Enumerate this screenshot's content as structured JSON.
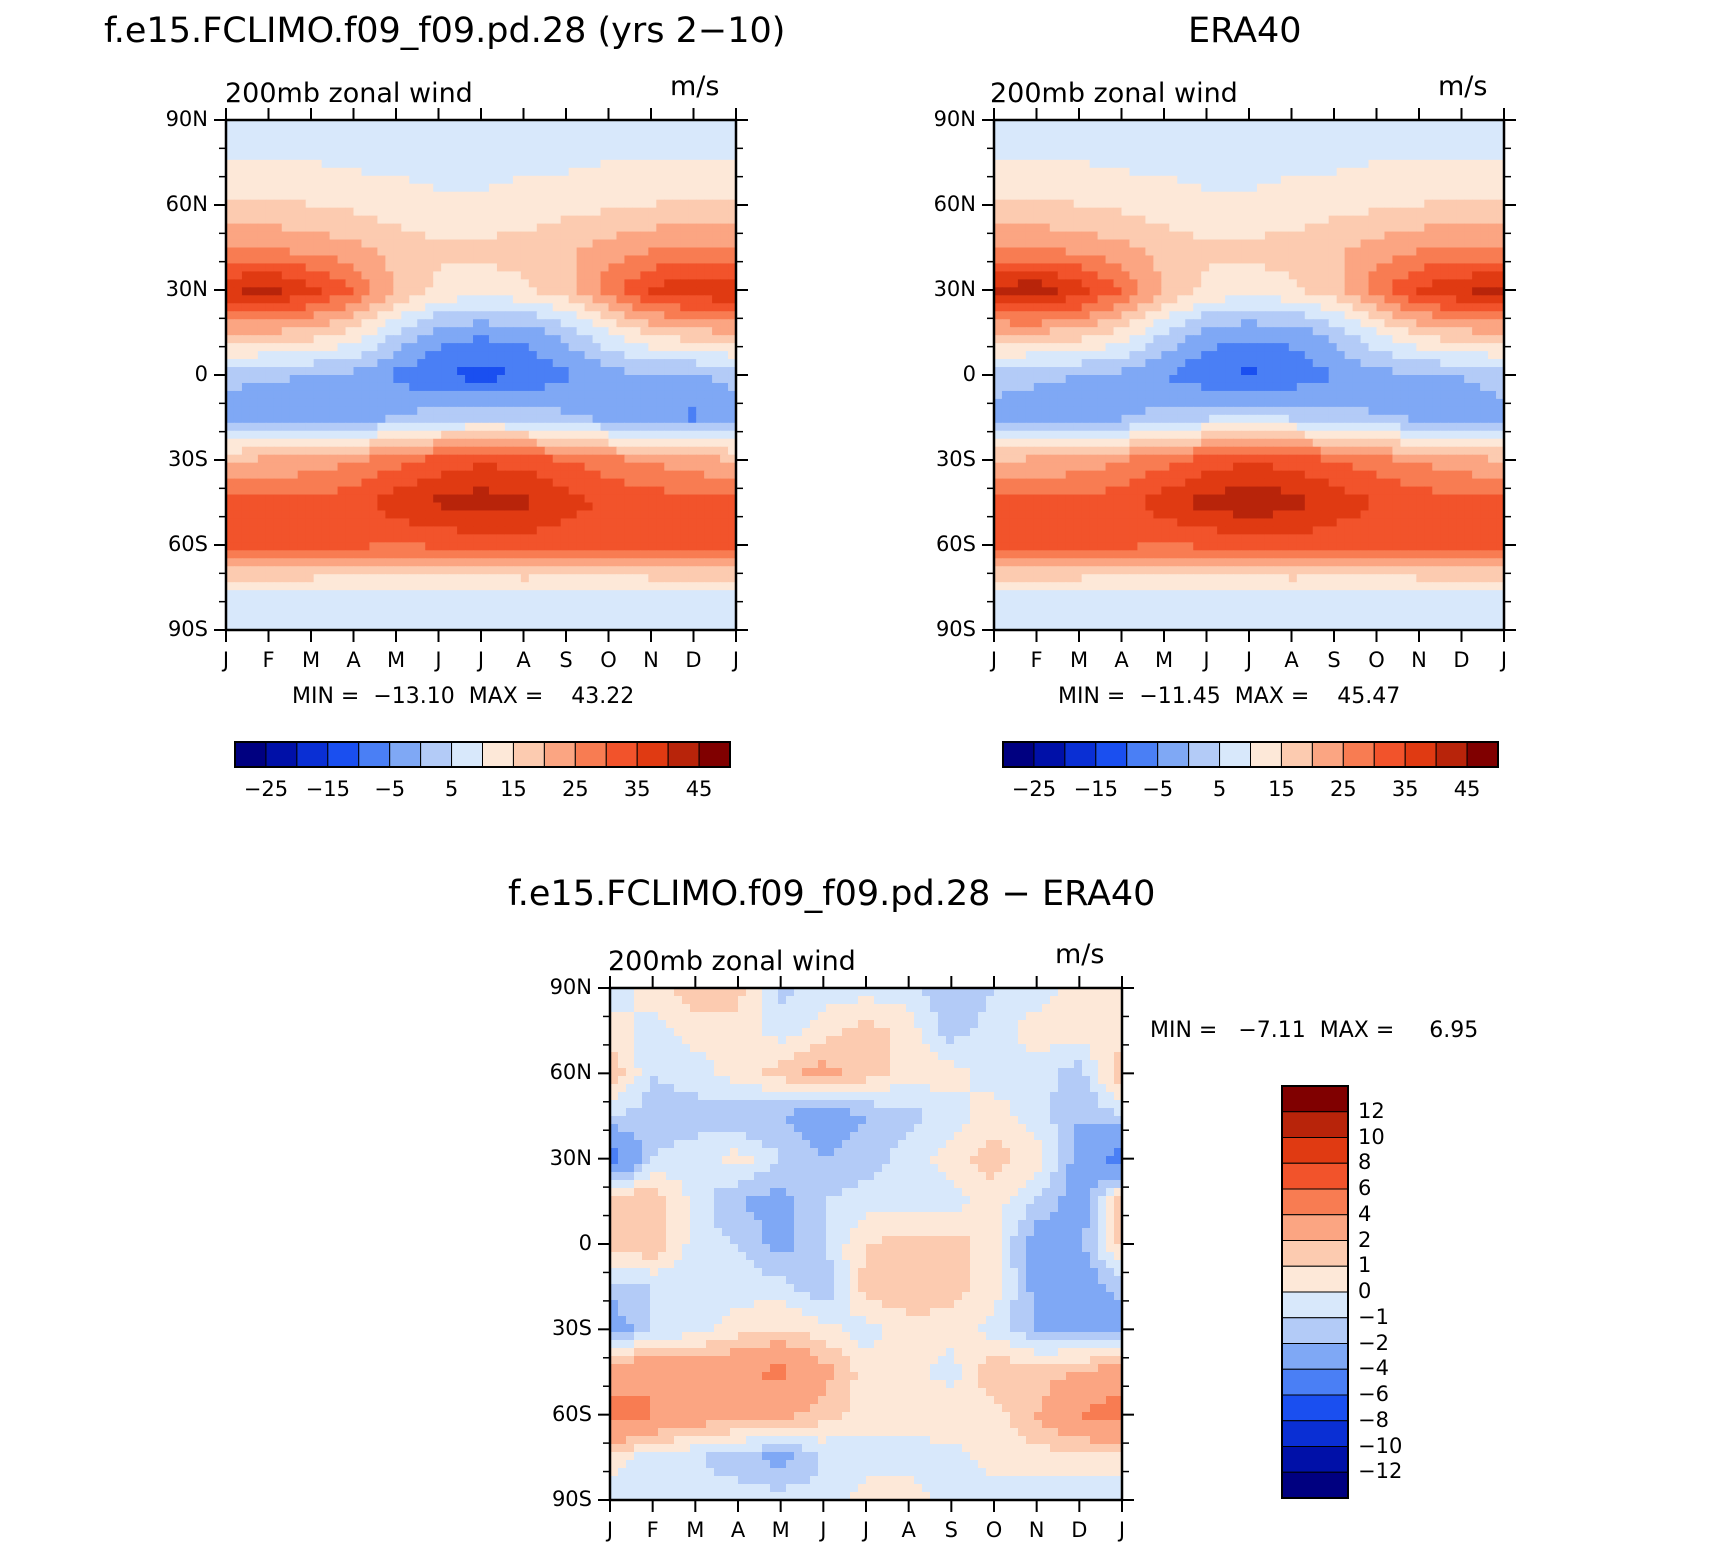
{
  "chart_data": [
    {
      "type": "heatmap",
      "id": "panel-model",
      "title": "f.e15.FCLIMO.f09_f09.pd.28 (yrs 2−10)",
      "subtitle_left": "200mb  zonal  wind",
      "subtitle_right": "m/s",
      "min_max": "MIN =  −13.10  MAX =    43.22",
      "y_ticks": [
        "90N",
        "60N",
        "30N",
        "0",
        "30S",
        "60S",
        "90S"
      ],
      "x_ticks": [
        "J",
        "F",
        "M",
        "A",
        "M",
        "J",
        "J",
        "A",
        "S",
        "O",
        "N",
        "D",
        "J"
      ],
      "ylim": [
        -90,
        90
      ],
      "levels": [
        -30,
        -25,
        -20,
        -15,
        -10,
        -5,
        0,
        5,
        10,
        15,
        20,
        25,
        30,
        35,
        40,
        45
      ],
      "colorbar_labels": [
        "−25",
        "−15",
        "−5",
        "5",
        "15",
        "25",
        "35",
        "45"
      ],
      "min": -13.1,
      "max": 43.22
    },
    {
      "type": "heatmap",
      "id": "panel-obs",
      "title": "ERA40",
      "subtitle_left": "200mb  zonal  wind",
      "subtitle_right": "m/s",
      "min_max": "MIN =  −11.45  MAX =    45.47",
      "y_ticks": [
        "90N",
        "60N",
        "30N",
        "0",
        "30S",
        "60S",
        "90S"
      ],
      "x_ticks": [
        "J",
        "F",
        "M",
        "A",
        "M",
        "J",
        "J",
        "A",
        "S",
        "O",
        "N",
        "D",
        "J"
      ],
      "ylim": [
        -90,
        90
      ],
      "levels": [
        -30,
        -25,
        -20,
        -15,
        -10,
        -5,
        0,
        5,
        10,
        15,
        20,
        25,
        30,
        35,
        40,
        45
      ],
      "colorbar_labels": [
        "−25",
        "−15",
        "−5",
        "5",
        "15",
        "25",
        "35",
        "45"
      ],
      "min": -11.45,
      "max": 45.47
    },
    {
      "type": "heatmap",
      "id": "panel-diff",
      "title": "f.e15.FCLIMO.f09_f09.pd.28 − ERA40",
      "subtitle_left": "200mb  zonal  wind",
      "subtitle_right": "m/s",
      "min_max": "MIN =   −7.11  MAX =     6.95",
      "y_ticks": [
        "90N",
        "60N",
        "30N",
        "0",
        "30S",
        "60S",
        "90S"
      ],
      "x_ticks": [
        "J",
        "F",
        "M",
        "A",
        "M",
        "J",
        "J",
        "A",
        "S",
        "O",
        "N",
        "D",
        "J"
      ],
      "ylim": [
        -90,
        90
      ],
      "levels": [
        -12,
        -10,
        -8,
        -6,
        -4,
        -2,
        -1,
        0,
        1,
        2,
        4,
        6,
        8,
        10,
        12
      ],
      "colorbar_labels": [
        "12",
        "10",
        "8",
        "6",
        "4",
        "2",
        "1",
        "0",
        "−1",
        "−2",
        "−4",
        "−6",
        "−8",
        "−10",
        "−12"
      ],
      "min": -7.11,
      "max": 6.95
    }
  ],
  "colors": {
    "full_field": [
      "#000080",
      "#0010a8",
      "#0a2fd4",
      "#1a4ff0",
      "#4a7ff5",
      "#7fa8f5",
      "#b3cbf7",
      "#d8e8fb",
      "#fde8d8",
      "#fccbb0",
      "#fba582",
      "#f87c52",
      "#f2532b",
      "#e03a12",
      "#b8240a",
      "#800000"
    ],
    "difference": [
      "#000080",
      "#0010a8",
      "#0a2fd4",
      "#1a4ff0",
      "#4a7ff5",
      "#7fa8f5",
      "#b3cbf7",
      "#d8e8fb",
      "#fde8d8",
      "#fccbb0",
      "#fba582",
      "#f87c52",
      "#f2532b",
      "#e03a12",
      "#b8240a",
      "#800000"
    ]
  }
}
